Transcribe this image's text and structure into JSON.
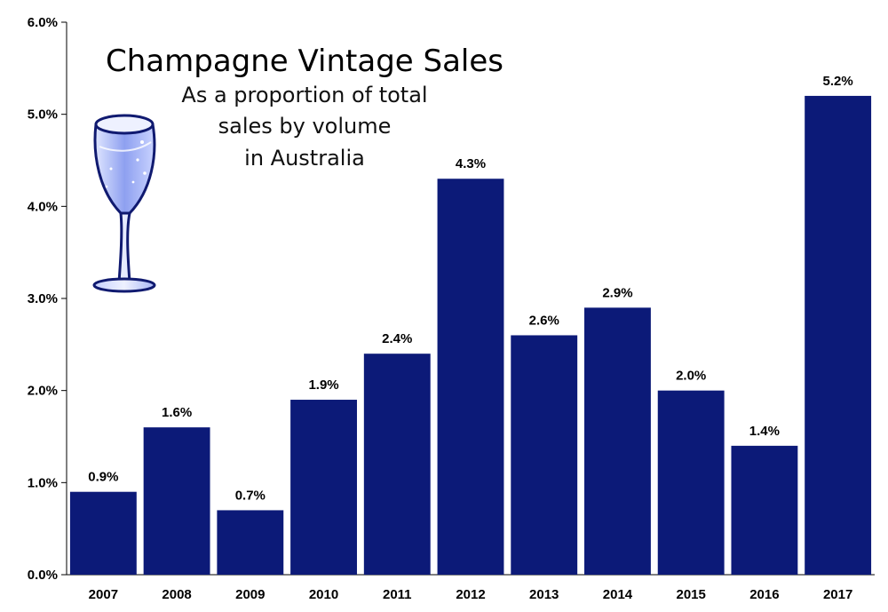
{
  "chart_data": {
    "type": "bar",
    "title": "Champagne Vintage Sales",
    "subtitle_lines": [
      "As a proportion of total",
      "sales by volume",
      "in Australia"
    ],
    "categories": [
      "2007",
      "2008",
      "2009",
      "2010",
      "2011",
      "2012",
      "2013",
      "2014",
      "2015",
      "2016",
      "2017"
    ],
    "values": [
      0.9,
      1.6,
      0.7,
      1.9,
      2.4,
      4.3,
      2.6,
      2.9,
      2.0,
      1.4,
      5.2
    ],
    "value_labels": [
      "0.9%",
      "1.6%",
      "0.7%",
      "1.9%",
      "2.4%",
      "4.3%",
      "2.6%",
      "2.9%",
      "2.0%",
      "1.4%",
      "5.2%"
    ],
    "ylim": [
      0,
      6
    ],
    "y_ticks": [
      "0.0%",
      "1.0%",
      "2.0%",
      "3.0%",
      "4.0%",
      "5.0%",
      "6.0%"
    ],
    "xlabel": "",
    "ylabel": "",
    "grid": false,
    "bar_color": "#0c1a78",
    "icon": "champagne-glass-icon"
  }
}
